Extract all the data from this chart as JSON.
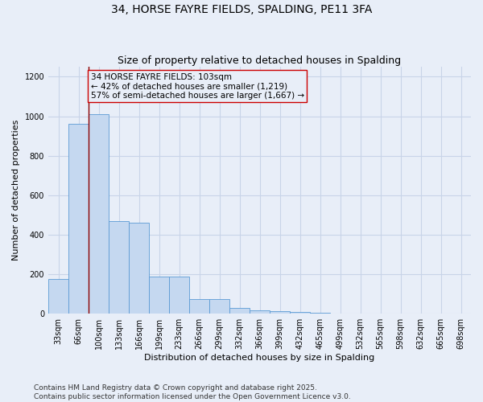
{
  "title": "34, HORSE FAYRE FIELDS, SPALDING, PE11 3FA",
  "subtitle": "Size of property relative to detached houses in Spalding",
  "xlabel": "Distribution of detached houses by size in Spalding",
  "ylabel": "Number of detached properties",
  "categories": [
    "33sqm",
    "66sqm",
    "100sqm",
    "133sqm",
    "166sqm",
    "199sqm",
    "233sqm",
    "266sqm",
    "299sqm",
    "332sqm",
    "366sqm",
    "399sqm",
    "432sqm",
    "465sqm",
    "499sqm",
    "532sqm",
    "565sqm",
    "598sqm",
    "632sqm",
    "665sqm",
    "698sqm"
  ],
  "values": [
    175,
    960,
    1010,
    470,
    460,
    190,
    190,
    75,
    75,
    28,
    18,
    12,
    8,
    4,
    0,
    0,
    0,
    0,
    0,
    0,
    0
  ],
  "bar_color": "#c5d8f0",
  "bar_edge_color": "#5b9bd5",
  "vline_position": 1.5,
  "vline_color": "#8b0000",
  "annotation_text": "34 HORSE FAYRE FIELDS: 103sqm\n← 42% of detached houses are smaller (1,219)\n57% of semi-detached houses are larger (1,667) →",
  "annotation_box_color": "#cc0000",
  "ylim": [
    0,
    1250
  ],
  "yticks": [
    0,
    200,
    400,
    600,
    800,
    1000,
    1200
  ],
  "background_color": "#e8eef8",
  "grid_color": "#d0d8e8",
  "footer_line1": "Contains HM Land Registry data © Crown copyright and database right 2025.",
  "footer_line2": "Contains public sector information licensed under the Open Government Licence v3.0.",
  "title_fontsize": 10,
  "subtitle_fontsize": 9,
  "label_fontsize": 8,
  "tick_fontsize": 7,
  "annotation_fontsize": 7.5,
  "footer_fontsize": 6.5
}
